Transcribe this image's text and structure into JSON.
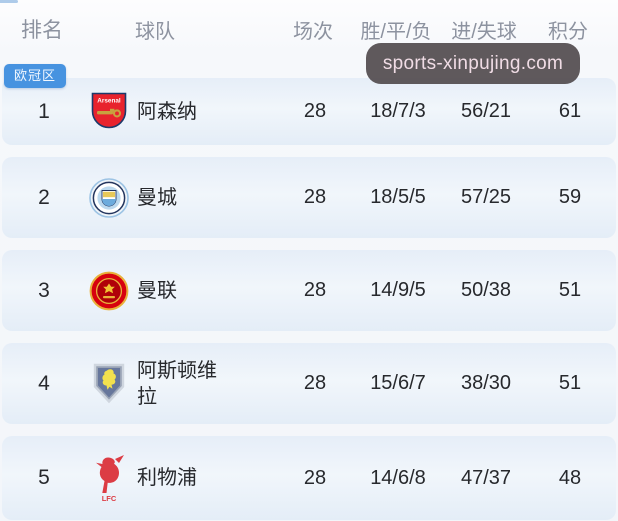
{
  "page": {
    "watermark": "sports-xinpujing.com",
    "zone_badge": "欧冠区"
  },
  "table": {
    "headers": {
      "rank": "排名",
      "team": "球队",
      "played": "场次",
      "wdl": "胜/平/负",
      "goals": "进/失球",
      "points": "积分"
    },
    "rows": [
      {
        "rank": "1",
        "team": "阿森纳",
        "logo": "arsenal",
        "played": "28",
        "wdl": "18/7/3",
        "goals": "56/21",
        "points": "61"
      },
      {
        "rank": "2",
        "team": "曼城",
        "logo": "man-city",
        "played": "28",
        "wdl": "18/5/5",
        "goals": "57/25",
        "points": "59"
      },
      {
        "rank": "3",
        "team": "曼联",
        "logo": "man-united",
        "played": "28",
        "wdl": "14/9/5",
        "goals": "50/38",
        "points": "51"
      },
      {
        "rank": "4",
        "team": "阿斯顿维拉",
        "logo": "aston-villa",
        "played": "28",
        "wdl": "15/6/7",
        "goals": "38/30",
        "points": "51"
      },
      {
        "rank": "5",
        "team": "利物浦",
        "logo": "liverpool",
        "played": "28",
        "wdl": "14/6/8",
        "goals": "47/37",
        "points": "48"
      }
    ]
  },
  "colors": {
    "page_bg": "#f3f6fa",
    "row_bg_top": "#e6eef8",
    "row_bg_bottom": "#e4edf7",
    "header_text": "#8d93a0",
    "cell_text": "#27292d",
    "badge_bg": "#4793e0",
    "badge_text": "#f2f8ff",
    "watermark_bg": "#575154",
    "watermark_text": "#f0dbe4"
  }
}
